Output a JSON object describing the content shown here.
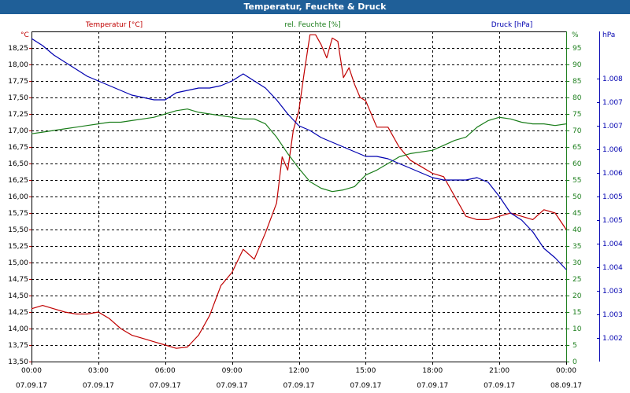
{
  "window": {
    "title": "Temperatur, Feuchte & Druck"
  },
  "colors": {
    "title_bg": "#1f5f98",
    "temperature": "#c00000",
    "humidity": "#1a7d1a",
    "pressure": "#0000b0",
    "grid": "#000000"
  },
  "chart_data": {
    "type": "line",
    "title": "Temperatur, Feuchte & Druck",
    "grid": true,
    "x_axis": {
      "range": [
        "07.09.17 00:00",
        "08.09.17 00:00"
      ],
      "ticks": [
        {
          "time": "00:00",
          "date": "07.09.17"
        },
        {
          "time": "03:00",
          "date": "07.09.17"
        },
        {
          "time": "06:00",
          "date": "07.09.17"
        },
        {
          "time": "09:00",
          "date": "07.09.17"
        },
        {
          "time": "12:00",
          "date": "07.09.17"
        },
        {
          "time": "15:00",
          "date": "07.09.17"
        },
        {
          "time": "18:00",
          "date": "07.09.17"
        },
        {
          "time": "21:00",
          "date": "07.09.17"
        },
        {
          "time": "00:00",
          "date": "08.09.17"
        }
      ]
    },
    "axes": {
      "temperature": {
        "label": "Temperatur [°C]",
        "unit": "°C",
        "range": [
          13.5,
          18.5
        ],
        "ticks": [
          "13,50",
          "13,75",
          "14,00",
          "14,25",
          "14,50",
          "14,75",
          "15,00",
          "15,25",
          "15,50",
          "15,75",
          "16,00",
          "16,25",
          "16,50",
          "16,75",
          "17,00",
          "17,25",
          "17,50",
          "17,75",
          "18,00",
          "18,25"
        ]
      },
      "humidity": {
        "label": "rel. Feuchte [%]",
        "unit": "%",
        "range": [
          0,
          100
        ],
        "ticks": [
          "0",
          "5",
          "10",
          "15",
          "20",
          "25",
          "30",
          "35",
          "40",
          "45",
          "50",
          "55",
          "60",
          "65",
          "70",
          "75",
          "80",
          "85",
          "90",
          "95"
        ]
      },
      "pressure": {
        "label": "Druck [hPa]",
        "unit": "hPa",
        "range": [
          1001.5,
          1008.5
        ],
        "ticks": [
          "1.002",
          "1.003",
          "1.003",
          "1.004",
          "1.004",
          "1.005",
          "1.005",
          "1.006",
          "1.006",
          "1.007",
          "1.007",
          "1.008"
        ]
      }
    },
    "series": [
      {
        "name": "Temperatur [°C]",
        "axis": "temperature",
        "x": [
          "00:00",
          "00:30",
          "01:00",
          "01:30",
          "02:00",
          "02:30",
          "03:00",
          "03:30",
          "04:00",
          "04:30",
          "05:00",
          "05:30",
          "06:00",
          "06:30",
          "07:00",
          "07:30",
          "08:00",
          "08:30",
          "09:00",
          "09:30",
          "10:00",
          "10:30",
          "11:00",
          "11:15",
          "11:30",
          "11:45",
          "12:00",
          "12:15",
          "12:30",
          "12:45",
          "13:00",
          "13:15",
          "13:30",
          "13:45",
          "14:00",
          "14:15",
          "14:30",
          "14:45",
          "15:00",
          "15:30",
          "16:00",
          "16:30",
          "17:00",
          "17:30",
          "18:00",
          "18:30",
          "19:00",
          "19:30",
          "20:00",
          "20:30",
          "21:00",
          "21:30",
          "22:00",
          "22:30",
          "23:00",
          "23:30",
          "24:00"
        ],
        "values": [
          14.3,
          14.35,
          14.3,
          14.25,
          14.22,
          14.22,
          14.25,
          14.15,
          14.0,
          13.9,
          13.85,
          13.8,
          13.75,
          13.7,
          13.72,
          13.9,
          14.2,
          14.65,
          14.85,
          15.2,
          15.05,
          15.45,
          15.9,
          16.6,
          16.4,
          17.0,
          17.3,
          17.9,
          18.45,
          18.45,
          18.3,
          18.1,
          18.4,
          18.35,
          17.8,
          17.95,
          17.7,
          17.5,
          17.45,
          17.05,
          17.05,
          16.75,
          16.55,
          16.45,
          16.35,
          16.3,
          16.0,
          15.7,
          15.65,
          15.65,
          15.7,
          15.75,
          15.7,
          15.65,
          15.8,
          15.75,
          15.5
        ]
      },
      {
        "name": "rel. Feuchte [%]",
        "axis": "humidity",
        "x": [
          "00:00",
          "00:30",
          "01:00",
          "01:30",
          "02:00",
          "02:30",
          "03:00",
          "03:30",
          "04:00",
          "04:30",
          "05:00",
          "05:30",
          "06:00",
          "06:30",
          "07:00",
          "07:30",
          "08:00",
          "08:30",
          "09:00",
          "09:30",
          "10:00",
          "10:30",
          "11:00",
          "11:30",
          "12:00",
          "12:30",
          "13:00",
          "13:30",
          "14:00",
          "14:30",
          "15:00",
          "15:30",
          "16:00",
          "16:30",
          "17:00",
          "17:30",
          "18:00",
          "18:30",
          "19:00",
          "19:30",
          "20:00",
          "20:30",
          "21:00",
          "21:30",
          "22:00",
          "22:30",
          "23:00",
          "23:30",
          "24:00"
        ],
        "values": [
          69,
          69.5,
          70,
          70.5,
          71,
          71.5,
          72,
          72.5,
          72.5,
          73,
          73.5,
          74,
          75,
          76,
          76.5,
          75.5,
          75,
          74.5,
          74,
          73.5,
          73.5,
          72,
          68,
          63,
          58.5,
          54.5,
          52.5,
          51.5,
          52,
          53,
          56.5,
          58,
          60,
          62,
          63,
          63.5,
          64,
          65.5,
          67,
          68,
          71,
          73,
          74,
          73.5,
          72.5,
          72,
          72,
          71.5,
          72
        ]
      },
      {
        "name": "Druck [hPa]",
        "axis": "pressure",
        "x": [
          "00:00",
          "00:30",
          "01:00",
          "01:30",
          "02:00",
          "02:30",
          "03:00",
          "03:30",
          "04:00",
          "04:30",
          "05:00",
          "05:30",
          "06:00",
          "06:30",
          "07:00",
          "07:30",
          "08:00",
          "08:30",
          "09:00",
          "09:30",
          "10:00",
          "10:30",
          "11:00",
          "11:30",
          "12:00",
          "12:30",
          "13:00",
          "13:30",
          "14:00",
          "14:30",
          "15:00",
          "15:30",
          "16:00",
          "16:30",
          "17:00",
          "17:30",
          "18:00",
          "18:30",
          "19:00",
          "19:30",
          "20:00",
          "20:30",
          "21:00",
          "21:30",
          "22:00",
          "22:30",
          "23:00",
          "23:30",
          "24:00"
        ],
        "values": [
          1008.35,
          1008.2,
          1008.0,
          1007.85,
          1007.7,
          1007.55,
          1007.45,
          1007.35,
          1007.25,
          1007.15,
          1007.1,
          1007.05,
          1007.05,
          1007.2,
          1007.25,
          1007.3,
          1007.3,
          1007.35,
          1007.45,
          1007.6,
          1007.45,
          1007.3,
          1007.05,
          1006.75,
          1006.5,
          1006.4,
          1006.25,
          1006.15,
          1006.05,
          1005.95,
          1005.85,
          1005.85,
          1005.8,
          1005.7,
          1005.6,
          1005.5,
          1005.4,
          1005.35,
          1005.35,
          1005.35,
          1005.4,
          1005.3,
          1005.0,
          1004.65,
          1004.5,
          1004.25,
          1003.9,
          1003.7,
          1003.45
        ]
      }
    ]
  }
}
